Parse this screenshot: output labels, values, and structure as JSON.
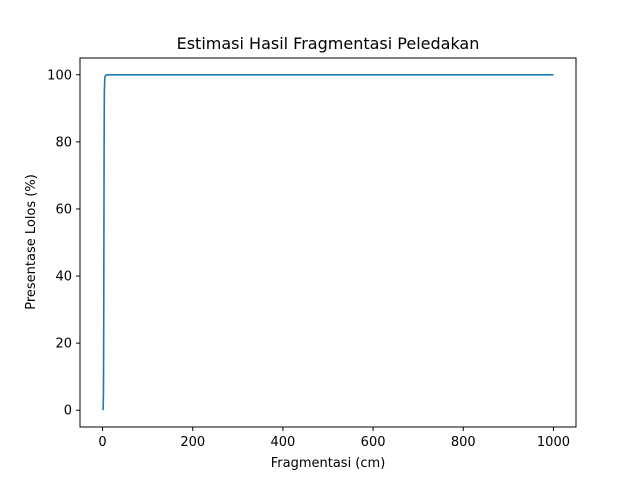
{
  "chart_data": {
    "type": "line",
    "title": "Estimasi Hasil Fragmentasi Peledakan",
    "xlabel": "Fragmentasi (cm)",
    "ylabel": "Presentase Lolos (%)",
    "xlim": [
      -50,
      1050
    ],
    "ylim": [
      -5,
      105
    ],
    "xticks": [
      0,
      200,
      400,
      600,
      800,
      1000
    ],
    "yticks": [
      0,
      20,
      40,
      60,
      80,
      100
    ],
    "grid": false,
    "series": [
      {
        "color": "#1f77b4",
        "x": [
          1,
          1.5,
          2,
          2.5,
          3,
          3.5,
          4,
          5,
          6,
          8,
          10,
          20,
          50,
          100,
          200,
          400,
          600,
          800,
          1000
        ],
        "y": [
          0,
          1,
          5,
          20,
          50,
          80,
          95,
          99,
          99.7,
          99.9,
          100,
          100,
          100,
          100,
          100,
          100,
          100,
          100,
          100
        ]
      }
    ]
  }
}
